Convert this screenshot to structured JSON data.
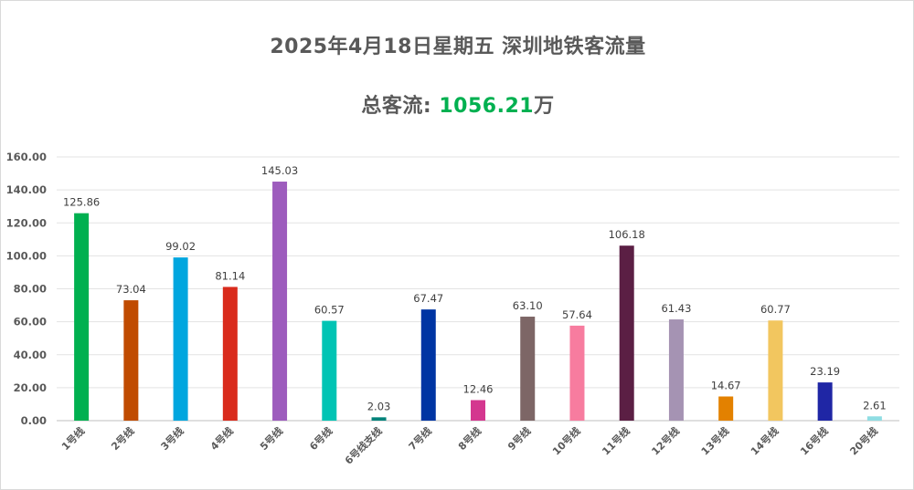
{
  "header": {
    "title": "2025年4月18日星期五  深圳地铁客流量",
    "total_prefix": "总客流: ",
    "total_value": "1056.21",
    "total_unit": "万"
  },
  "chart_data": {
    "type": "bar",
    "title": "2025年4月18日星期五  深圳地铁客流量",
    "subtitle": "总客流: 1056.21万",
    "xlabel": "",
    "ylabel": "",
    "ylim": [
      0,
      160
    ],
    "yticks": [
      "0.00",
      "20.00",
      "40.00",
      "60.00",
      "80.00",
      "100.00",
      "120.00",
      "140.00",
      "160.00"
    ],
    "grid": true,
    "legend": "none",
    "categories": [
      "1号线",
      "2号线",
      "3号线",
      "4号线",
      "5号线",
      "6号线",
      "6号线支线",
      "7号线",
      "8号线",
      "9号线",
      "10号线",
      "11号线",
      "12号线",
      "13号线",
      "14号线",
      "16号线",
      "20号线"
    ],
    "values": [
      125.86,
      73.04,
      99.02,
      81.14,
      145.03,
      60.57,
      2.03,
      67.47,
      12.46,
      63.1,
      57.64,
      106.18,
      61.43,
      14.67,
      60.77,
      23.19,
      2.61
    ],
    "value_labels": [
      "125.86",
      "73.04",
      "99.02",
      "81.14",
      "145.03",
      "60.57",
      "2.03",
      "67.47",
      "12.46",
      "63.10",
      "57.64",
      "106.18",
      "61.43",
      "14.67",
      "60.77",
      "23.19",
      "2.61"
    ],
    "colors": [
      "#00b050",
      "#c04b00",
      "#00a6df",
      "#d92b1c",
      "#9d5cbd",
      "#00c4b4",
      "#00827a",
      "#0035a3",
      "#d4378f",
      "#7d6666",
      "#f77c9f",
      "#5b1f44",
      "#a593b3",
      "#e38100",
      "#f2c65f",
      "#1f26a5",
      "#8fdde3"
    ]
  }
}
